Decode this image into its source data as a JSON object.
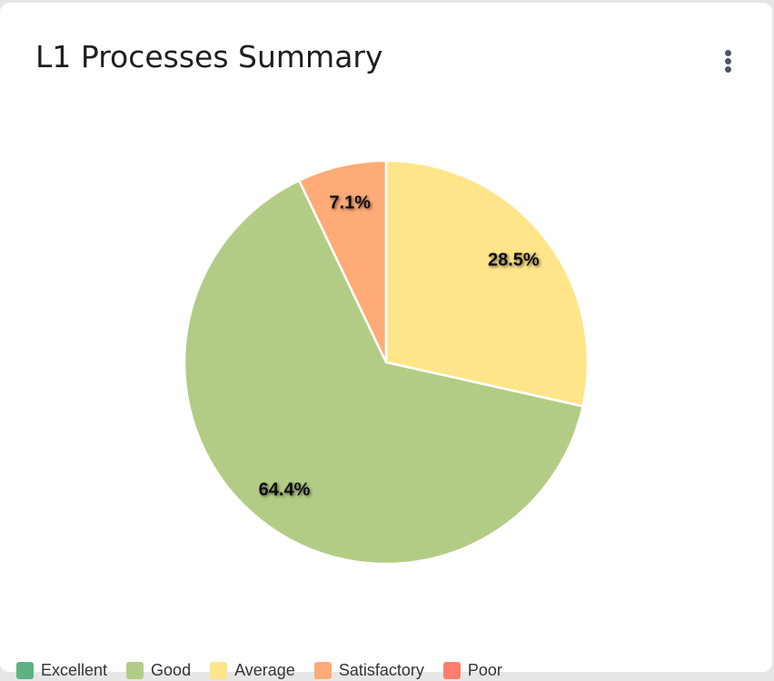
{
  "card": {
    "title": "L1 Processes Summary",
    "menu_icon": "more-vertical-icon"
  },
  "colors": {
    "background": "#ffffff",
    "slice_border": "#ffffff"
  },
  "chart_data": {
    "type": "pie",
    "title": "L1 Processes Summary",
    "start_angle_deg": 0,
    "direction": "clockwise",
    "legend_position": "bottom",
    "categories": [
      "Excellent",
      "Good",
      "Average",
      "Satisfactory",
      "Poor"
    ],
    "colors": [
      "#5db383",
      "#b3cc85",
      "#fee589",
      "#ffab78",
      "#fe7d6e"
    ],
    "values": [
      0,
      64.4,
      28.5,
      7.1,
      0
    ],
    "slices": [
      {
        "label": "Average",
        "value": 28.5,
        "text": "28.5%",
        "color": "#fee589"
      },
      {
        "label": "Good",
        "value": 64.4,
        "text": "64.4%",
        "color": "#b3cc85"
      },
      {
        "label": "Satisfactory",
        "value": 7.1,
        "text": "7.1%",
        "color": "#ffab78"
      }
    ]
  }
}
